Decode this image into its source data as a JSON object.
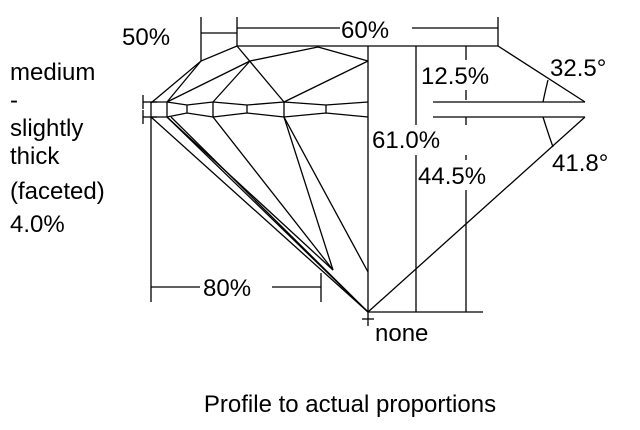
{
  "diagram": {
    "caption": "Profile to actual proportions",
    "girdle_label": [
      "medium",
      "-",
      "slightly",
      "thick",
      "(faceted)",
      "4.0%"
    ],
    "crown_angle": "32.5°",
    "pavilion_angle": "41.8°",
    "table_percent": "60%",
    "star_length": "50%",
    "lower_half_length": "80%",
    "crown_height": "12.5%",
    "total_depth": "61.0%",
    "pavilion_depth": "44.5%",
    "culet": "none",
    "line_color": "#000000",
    "background_color": "#ffffff"
  }
}
